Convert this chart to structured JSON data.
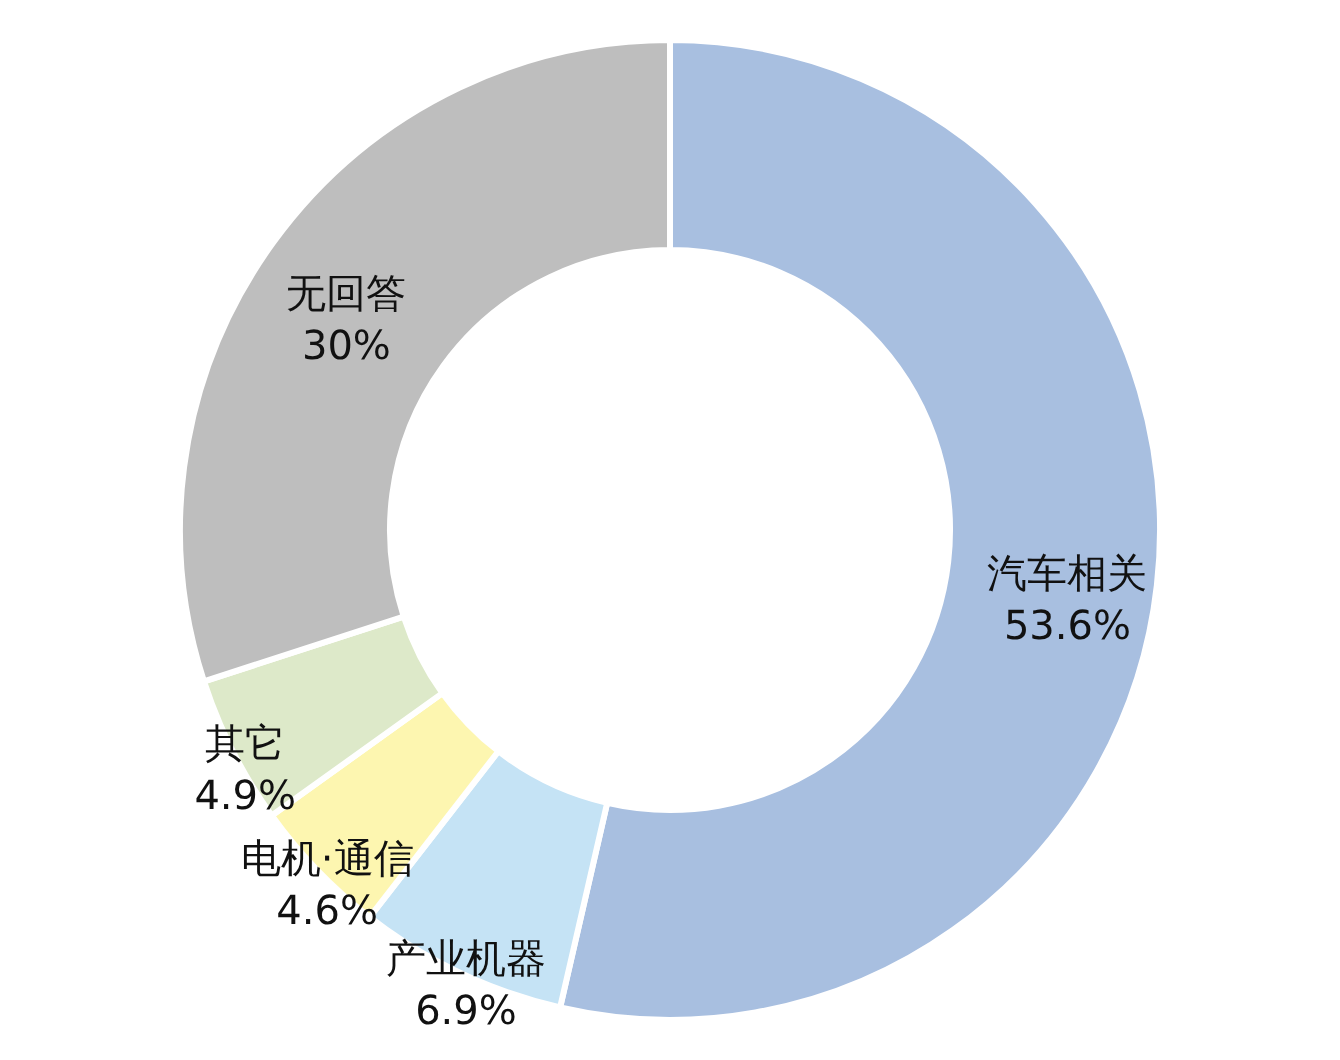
{
  "chart_data": {
    "type": "donut",
    "categories": [
      "汽车相关",
      "产业机器",
      "电机·通信",
      "其它",
      "无回答"
    ],
    "values": [
      53.6,
      6.9,
      4.6,
      4.9,
      30
    ],
    "value_labels": [
      "53.6%",
      "6.9%",
      "4.6%",
      "4.9%",
      "30%"
    ],
    "colors": [
      "#a8bfe0",
      "#c5e3f5",
      "#fdf6b0",
      "#dde9c9",
      "#bebebe"
    ]
  }
}
